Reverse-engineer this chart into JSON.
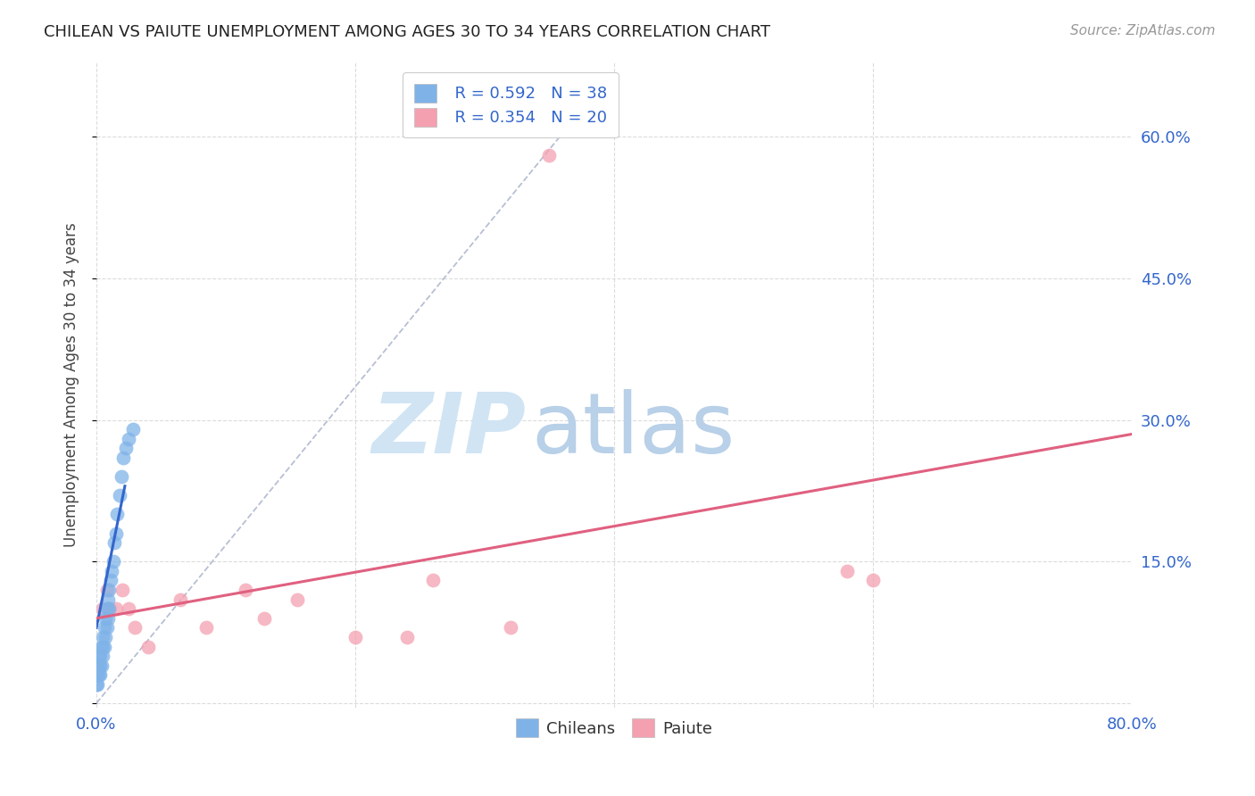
{
  "title": "CHILEAN VS PAIUTE UNEMPLOYMENT AMONG AGES 30 TO 34 YEARS CORRELATION CHART",
  "source": "Source: ZipAtlas.com",
  "ylabel": "Unemployment Among Ages 30 to 34 years",
  "xlim": [
    0,
    0.8
  ],
  "ylim": [
    -0.005,
    0.68
  ],
  "xticks": [
    0.0,
    0.2,
    0.4,
    0.6,
    0.8
  ],
  "xtick_labels": [
    "0.0%",
    "",
    "",
    "",
    "80.0%"
  ],
  "ytick_labels_right": [
    "15.0%",
    "30.0%",
    "45.0%",
    "60.0%"
  ],
  "yticks_right": [
    0.15,
    0.3,
    0.45,
    0.6
  ],
  "legend_r1": "R = 0.592",
  "legend_n1": "N = 38",
  "legend_r2": "R = 0.354",
  "legend_n2": "N = 20",
  "chilean_color": "#7fb3e8",
  "paiute_color": "#f4a0b0",
  "trend_blue_color": "#3366cc",
  "trend_pink_color": "#e06080",
  "trend_dashed_color": "#b0b8d0",
  "watermark_zip_color": "#d0e4f4",
  "watermark_atlas_color": "#b8d0e8",
  "chilean_scatter_x": [
    0.0,
    0.0,
    0.0,
    0.001,
    0.001,
    0.002,
    0.002,
    0.002,
    0.003,
    0.003,
    0.003,
    0.004,
    0.004,
    0.005,
    0.005,
    0.005,
    0.006,
    0.006,
    0.007,
    0.007,
    0.008,
    0.008,
    0.009,
    0.009,
    0.01,
    0.01,
    0.011,
    0.012,
    0.013,
    0.014,
    0.015,
    0.016,
    0.018,
    0.019,
    0.021,
    0.023,
    0.025,
    0.028
  ],
  "chilean_scatter_y": [
    0.02,
    0.03,
    0.04,
    0.02,
    0.03,
    0.03,
    0.04,
    0.05,
    0.03,
    0.04,
    0.05,
    0.04,
    0.06,
    0.05,
    0.06,
    0.07,
    0.06,
    0.08,
    0.07,
    0.09,
    0.08,
    0.1,
    0.09,
    0.11,
    0.1,
    0.12,
    0.13,
    0.14,
    0.15,
    0.17,
    0.18,
    0.2,
    0.22,
    0.24,
    0.26,
    0.27,
    0.28,
    0.29
  ],
  "chilean_trendline_x": [
    0.0,
    0.022
  ],
  "chilean_trendline_y": [
    0.08,
    0.23
  ],
  "paiute_scatter_x": [
    0.005,
    0.008,
    0.01,
    0.015,
    0.02,
    0.025,
    0.03,
    0.04,
    0.065,
    0.085,
    0.115,
    0.13,
    0.155,
    0.2,
    0.24,
    0.26,
    0.32,
    0.58,
    0.6,
    0.35
  ],
  "paiute_scatter_y": [
    0.1,
    0.12,
    0.1,
    0.1,
    0.12,
    0.1,
    0.08,
    0.06,
    0.11,
    0.08,
    0.12,
    0.09,
    0.11,
    0.07,
    0.07,
    0.13,
    0.08,
    0.14,
    0.13,
    0.58
  ],
  "paiute_trendline_x": [
    0.0,
    0.8
  ],
  "paiute_trendline_y": [
    0.09,
    0.285
  ],
  "dashed_line_x": [
    0.0,
    0.37
  ],
  "dashed_line_y": [
    0.0,
    0.62
  ]
}
